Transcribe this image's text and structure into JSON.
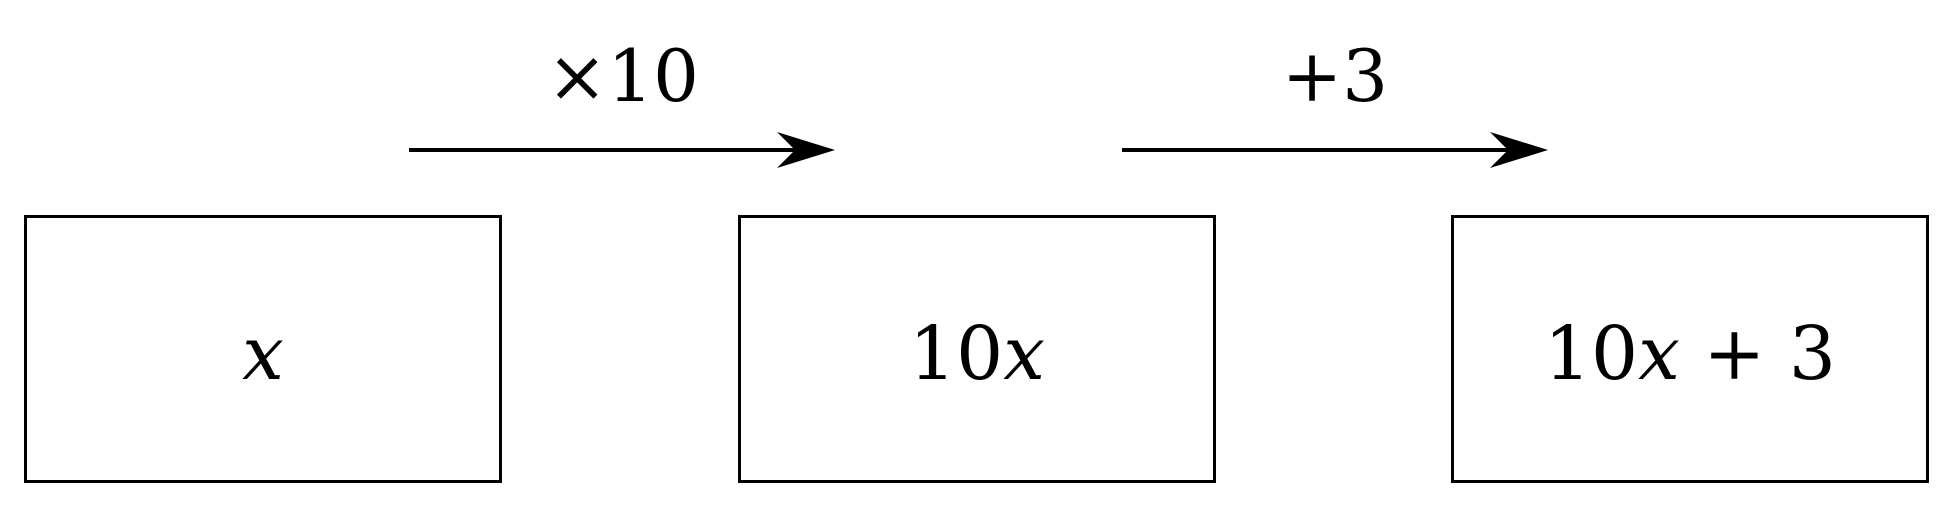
{
  "diagram": {
    "boxes": [
      {
        "coefficient": "",
        "variable": "x",
        "suffix": ""
      },
      {
        "coefficient": "10",
        "variable": "x",
        "suffix": ""
      },
      {
        "coefficient": "10",
        "variable": "x",
        "suffix": " + 3"
      }
    ],
    "operations": [
      {
        "label": "×10"
      },
      {
        "label": "+3"
      }
    ]
  }
}
